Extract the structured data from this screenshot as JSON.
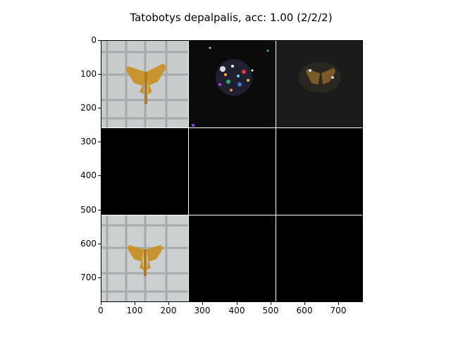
{
  "figure": {
    "title": "Tatobotys depalpalis, acc: 1.00 (2/2/2)"
  },
  "grid": {
    "rows": 3,
    "cols": 3,
    "cells": [
      {
        "row": 0,
        "col": 0,
        "content": "moth-photo"
      },
      {
        "row": 0,
        "col": 1,
        "content": "noisy-saliency-color"
      },
      {
        "row": 0,
        "col": 2,
        "content": "masked-moth-dark"
      },
      {
        "row": 1,
        "col": 0,
        "content": "black"
      },
      {
        "row": 1,
        "col": 1,
        "content": "black"
      },
      {
        "row": 1,
        "col": 2,
        "content": "black"
      },
      {
        "row": 2,
        "col": 0,
        "content": "moth-photo"
      },
      {
        "row": 2,
        "col": 1,
        "content": "black"
      },
      {
        "row": 2,
        "col": 2,
        "content": "black"
      }
    ]
  },
  "axes": {
    "yticks": [
      "0",
      "100",
      "200",
      "300",
      "400",
      "500",
      "600",
      "700"
    ],
    "xticks": [
      "0",
      "100",
      "200",
      "300",
      "400",
      "500",
      "600",
      "700"
    ]
  }
}
